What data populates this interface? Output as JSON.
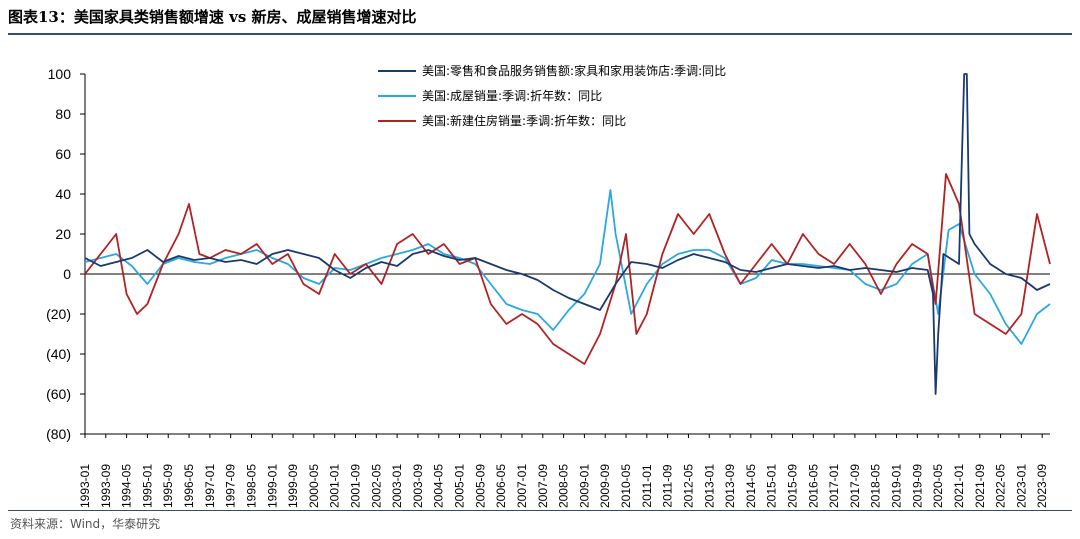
{
  "header": {
    "title": "图表13：美国家具类销售额增速 vs 新房、成屋销售增速对比"
  },
  "footer": {
    "source": "资料来源：Wind，华泰研究"
  },
  "colors": {
    "series1": "#1a3a6e",
    "series2": "#2aa8e0",
    "series3": "#b22222",
    "axis": "#000000"
  },
  "chart_data": {
    "type": "line",
    "title": "美国家具类销售额增速 vs 新房、成屋销售增速对比",
    "xlabel": "",
    "ylabel": "",
    "ylim": [
      -80,
      100
    ],
    "yticks": [
      100,
      80,
      60,
      40,
      20,
      0,
      -20,
      -40,
      -60,
      -80
    ],
    "ytick_labels": [
      "100",
      "80",
      "60",
      "40",
      "20",
      "0",
      "(20)",
      "(40)",
      "(60)",
      "(80)"
    ],
    "xlim": [
      "1993-01",
      "2023-12"
    ],
    "xtick_labels": [
      "1993-01",
      "1994-05",
      "1995-09",
      "1997-01",
      "1998-05",
      "1999-09",
      "2001-01",
      "2002-05",
      "2003-09",
      "2005-01",
      "2006-05",
      "2007-09",
      "2009-01",
      "2010-05",
      "2011-09",
      "2013-01",
      "2014-05",
      "2015-09",
      "2017-01",
      "2018-05",
      "2019-09",
      "2021-01",
      "2022-05",
      "2023-09"
    ],
    "xtick_labels_offset": [
      "1993-09",
      "1995-01",
      "1996-05",
      "1997-09",
      "1999-01",
      "2000-05",
      "2001-09",
      "2003-01",
      "2004-05",
      "2005-09",
      "2007-01",
      "2008-05",
      "2009-09",
      "2011-01",
      "2012-05",
      "2013-09",
      "2015-01",
      "2016-05",
      "2017-09",
      "2019-01",
      "2020-05",
      "2021-09",
      "2023-01"
    ],
    "legend_position": "top-center",
    "series": [
      {
        "name": "美国:零售和食品服务销售额:家具和家用装饰店:季调:同比",
        "color": "#1a3a6e",
        "x": [
          "1993-01",
          "1993-07",
          "1994-01",
          "1994-07",
          "1995-01",
          "1995-07",
          "1996-01",
          "1996-07",
          "1997-01",
          "1997-07",
          "1998-01",
          "1998-07",
          "1999-01",
          "1999-07",
          "2000-01",
          "2000-07",
          "2001-01",
          "2001-07",
          "2002-01",
          "2002-07",
          "2003-01",
          "2003-07",
          "2004-01",
          "2004-07",
          "2005-01",
          "2005-07",
          "2006-01",
          "2006-07",
          "2007-01",
          "2007-07",
          "2008-01",
          "2008-07",
          "2009-01",
          "2009-07",
          "2010-01",
          "2010-07",
          "2011-01",
          "2011-07",
          "2012-01",
          "2012-07",
          "2013-01",
          "2013-07",
          "2014-01",
          "2014-07",
          "2015-01",
          "2015-07",
          "2016-01",
          "2016-07",
          "2017-01",
          "2017-07",
          "2018-01",
          "2018-07",
          "2019-01",
          "2019-07",
          "2020-01",
          "2020-03",
          "2020-04",
          "2020-05",
          "2020-07",
          "2021-01",
          "2021-03",
          "2021-04",
          "2021-05",
          "2021-07",
          "2022-01",
          "2022-07",
          "2023-01",
          "2023-07",
          "2023-12"
        ],
        "values": [
          8,
          4,
          6,
          8,
          12,
          6,
          9,
          7,
          8,
          6,
          7,
          5,
          10,
          12,
          10,
          8,
          2,
          -2,
          3,
          6,
          4,
          10,
          12,
          9,
          7,
          8,
          5,
          2,
          0,
          -3,
          -8,
          -12,
          -15,
          -18,
          -5,
          6,
          5,
          3,
          7,
          10,
          8,
          6,
          2,
          1,
          3,
          5,
          4,
          3,
          4,
          2,
          3,
          2,
          1,
          3,
          2,
          -10,
          -60,
          -30,
          10,
          5,
          100,
          100,
          20,
          15,
          5,
          0,
          -2,
          -8,
          -5
        ]
      },
      {
        "name": "美国:成屋销量:季调:折年数：同比",
        "color": "#2aa8e0",
        "x": [
          "1993-01",
          "1993-07",
          "1994-01",
          "1994-07",
          "1995-01",
          "1995-07",
          "1996-01",
          "1996-07",
          "1997-01",
          "1997-07",
          "1998-01",
          "1998-07",
          "1999-01",
          "1999-07",
          "2000-01",
          "2000-07",
          "2001-01",
          "2001-07",
          "2002-01",
          "2002-07",
          "2003-01",
          "2003-07",
          "2004-01",
          "2004-07",
          "2005-01",
          "2005-07",
          "2006-01",
          "2006-07",
          "2007-01",
          "2007-07",
          "2008-01",
          "2008-07",
          "2009-01",
          "2009-07",
          "2009-11",
          "2010-01",
          "2010-07",
          "2011-01",
          "2011-07",
          "2012-01",
          "2012-07",
          "2013-01",
          "2013-07",
          "2014-01",
          "2014-07",
          "2015-01",
          "2015-07",
          "2016-01",
          "2016-07",
          "2017-01",
          "2017-07",
          "2018-01",
          "2018-07",
          "2019-01",
          "2019-07",
          "2020-01",
          "2020-05",
          "2020-09",
          "2021-01",
          "2021-07",
          "2022-01",
          "2022-07",
          "2023-01",
          "2023-07",
          "2023-12"
        ],
        "values": [
          6,
          8,
          10,
          4,
          -5,
          5,
          8,
          6,
          5,
          8,
          10,
          12,
          8,
          5,
          -2,
          -5,
          3,
          2,
          5,
          8,
          10,
          12,
          15,
          10,
          8,
          5,
          -5,
          -15,
          -18,
          -20,
          -28,
          -18,
          -10,
          5,
          42,
          20,
          -20,
          -5,
          5,
          10,
          12,
          12,
          8,
          -5,
          -2,
          7,
          5,
          5,
          4,
          3,
          2,
          -5,
          -8,
          -5,
          5,
          10,
          -20,
          22,
          25,
          0,
          -10,
          -25,
          -35,
          -20,
          -15
        ]
      },
      {
        "name": "美国:新建住房销量:季调:折年数：同比",
        "color": "#b22222",
        "x": [
          "1993-01",
          "1993-07",
          "1994-01",
          "1994-05",
          "1994-09",
          "1995-01",
          "1995-07",
          "1996-01",
          "1996-05",
          "1996-09",
          "1997-01",
          "1997-07",
          "1998-01",
          "1998-07",
          "1999-01",
          "1999-07",
          "2000-01",
          "2000-07",
          "2001-01",
          "2001-07",
          "2002-01",
          "2002-07",
          "2003-01",
          "2003-07",
          "2004-01",
          "2004-07",
          "2005-01",
          "2005-07",
          "2006-01",
          "2006-07",
          "2007-01",
          "2007-07",
          "2008-01",
          "2008-07",
          "2009-01",
          "2009-07",
          "2010-01",
          "2010-05",
          "2010-09",
          "2011-01",
          "2011-07",
          "2012-01",
          "2012-07",
          "2013-01",
          "2013-07",
          "2014-01",
          "2014-07",
          "2015-01",
          "2015-07",
          "2016-01",
          "2016-07",
          "2017-01",
          "2017-07",
          "2018-01",
          "2018-07",
          "2019-01",
          "2019-07",
          "2020-01",
          "2020-04",
          "2020-08",
          "2021-01",
          "2021-07",
          "2022-01",
          "2022-07",
          "2023-01",
          "2023-07",
          "2023-12"
        ],
        "values": [
          0,
          10,
          20,
          -10,
          -20,
          -15,
          5,
          20,
          35,
          10,
          8,
          12,
          10,
          15,
          5,
          10,
          -5,
          -10,
          10,
          0,
          5,
          -5,
          15,
          20,
          10,
          15,
          5,
          8,
          -15,
          -25,
          -20,
          -25,
          -35,
          -40,
          -45,
          -30,
          -5,
          20,
          -30,
          -20,
          10,
          30,
          20,
          30,
          10,
          -5,
          5,
          15,
          5,
          20,
          10,
          5,
          15,
          5,
          -10,
          5,
          15,
          10,
          -15,
          50,
          35,
          -20,
          -25,
          -30,
          -20,
          30,
          5
        ]
      }
    ]
  }
}
